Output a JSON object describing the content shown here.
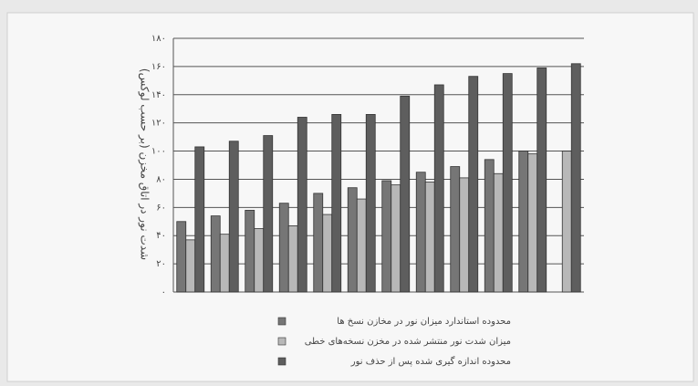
{
  "chart_data": {
    "type": "bar",
    "y_label": "شدت نور در اتاق مخزن (بر حسب لوکس)",
    "categories": [
      null,
      null,
      null,
      null,
      null,
      null,
      null,
      null,
      null,
      null,
      null,
      null
    ],
    "series": [
      {
        "name": "محدوده استاندارد میزان نور در مخازن نسخ ها",
        "color": "#767676",
        "values": [
          50,
          54,
          58,
          63,
          70,
          74,
          79,
          85,
          89,
          94,
          100,
          null
        ]
      },
      {
        "name": "میزان شدت نور منتشر شده در مخزن نسخه‌های خطی",
        "color": "#b8b8b8",
        "values": [
          37,
          41,
          45,
          47,
          55,
          66,
          76,
          78,
          81,
          84,
          98,
          100
        ]
      },
      {
        "name": "محدوده اندازه گیری شده پس از حذف نور",
        "color": "#5e5e5e",
        "values": [
          103,
          107,
          111,
          124,
          126,
          126,
          139,
          147,
          153,
          155,
          159,
          162
        ]
      }
    ],
    "ylim": [
      0,
      180
    ],
    "yticks": [
      {
        "value": 0,
        "label": "۰"
      },
      {
        "value": 20,
        "label": "۲۰"
      },
      {
        "value": 40,
        "label": "۴۰"
      },
      {
        "value": 60,
        "label": "۶۰"
      },
      {
        "value": 80,
        "label": "۸۰"
      },
      {
        "value": 100,
        "label": "۱۰۰"
      },
      {
        "value": 120,
        "label": "۱۲۰"
      },
      {
        "value": 140,
        "label": "۱۴۰"
      },
      {
        "value": 160,
        "label": "۱۶۰"
      },
      {
        "value": 180,
        "label": "۱۸۰"
      }
    ],
    "grid": true
  }
}
